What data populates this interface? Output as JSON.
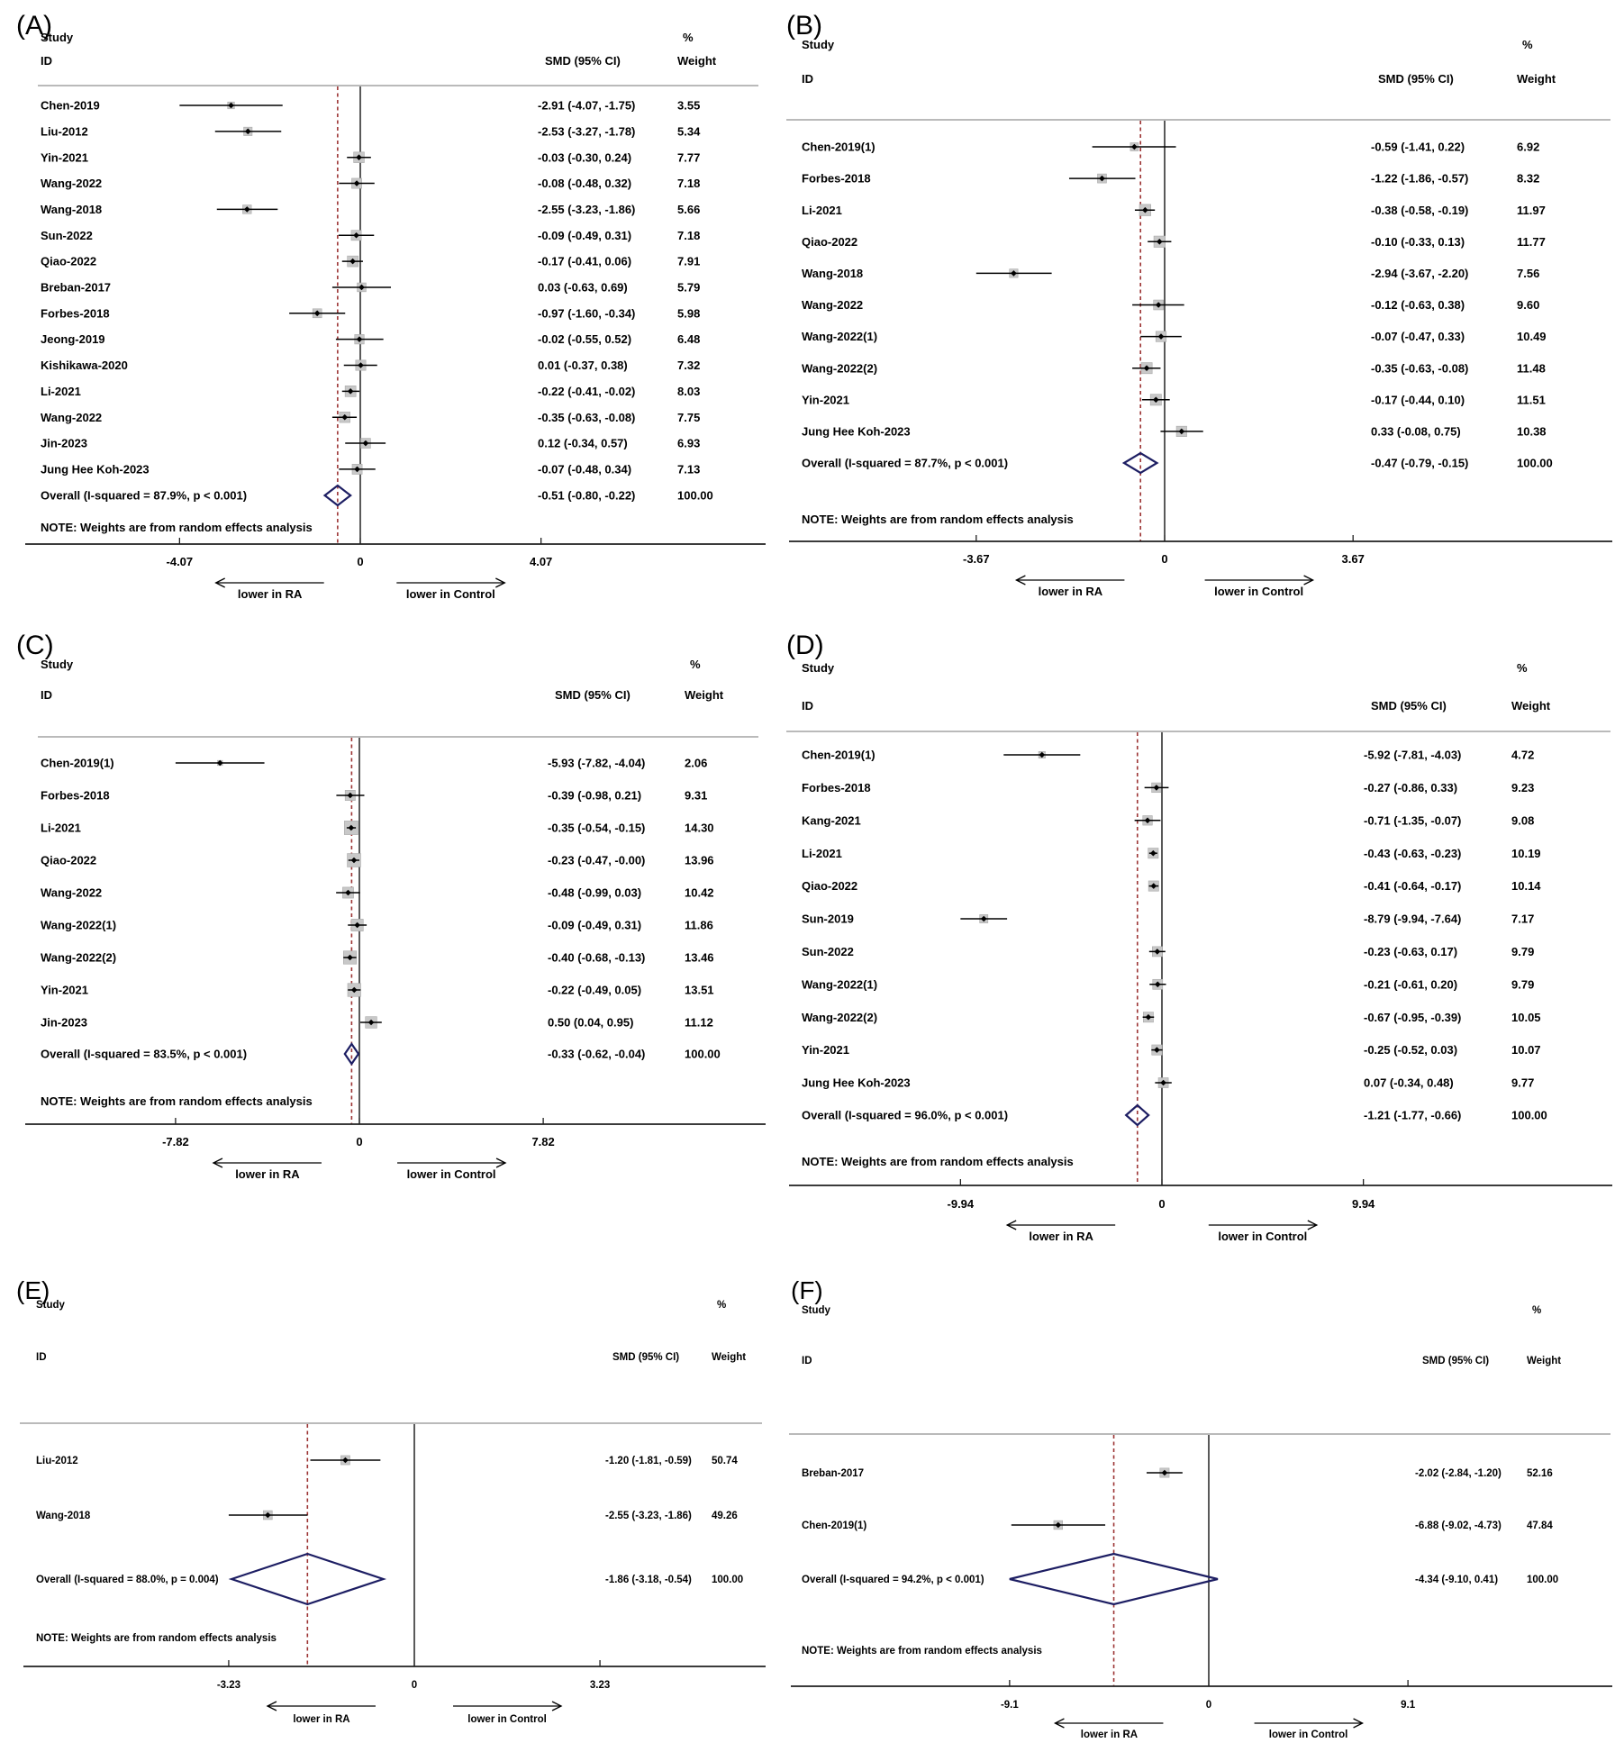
{
  "colors": {
    "dashed_line": "#9c3434",
    "diamond_outline": "#1d1e63",
    "weight_box_fill": "#c8c8c8",
    "weight_box_edge": "#a9a9a9",
    "header_rule": "#a3a3a3",
    "axis_line": "#1f1f1f",
    "text": "#000000"
  },
  "chart_data": [
    {
      "type": "forest",
      "panel_label": "(A)",
      "columns": {
        "study": "Study",
        "id": "ID",
        "smd": "SMD (95% CI)",
        "pct": "%",
        "weight": "Weight"
      },
      "studies": [
        {
          "id": "Chen-2019",
          "est": -2.91,
          "lo": -4.07,
          "hi": -1.75,
          "ci_text": "-2.91 (-4.07, -1.75)",
          "weight": "3.55"
        },
        {
          "id": "Liu-2012",
          "est": -2.53,
          "lo": -3.27,
          "hi": -1.78,
          "ci_text": "-2.53 (-3.27, -1.78)",
          "weight": "5.34"
        },
        {
          "id": "Yin-2021",
          "est": -0.03,
          "lo": -0.3,
          "hi": 0.24,
          "ci_text": "-0.03 (-0.30, 0.24)",
          "weight": "7.77"
        },
        {
          "id": "Wang-2022",
          "est": -0.08,
          "lo": -0.48,
          "hi": 0.32,
          "ci_text": "-0.08 (-0.48, 0.32)",
          "weight": "7.18"
        },
        {
          "id": "Wang-2018",
          "est": -2.55,
          "lo": -3.23,
          "hi": -1.86,
          "ci_text": "-2.55 (-3.23, -1.86)",
          "weight": "5.66"
        },
        {
          "id": "Sun-2022",
          "est": -0.09,
          "lo": -0.49,
          "hi": 0.31,
          "ci_text": "-0.09 (-0.49, 0.31)",
          "weight": "7.18"
        },
        {
          "id": "Qiao-2022",
          "est": -0.17,
          "lo": -0.41,
          "hi": 0.06,
          "ci_text": "-0.17 (-0.41, 0.06)",
          "weight": "7.91"
        },
        {
          "id": "Breban-2017",
          "est": 0.03,
          "lo": -0.63,
          "hi": 0.69,
          "ci_text": "0.03 (-0.63, 0.69)",
          "weight": "5.79"
        },
        {
          "id": "Forbes-2018",
          "est": -0.97,
          "lo": -1.6,
          "hi": -0.34,
          "ci_text": "-0.97 (-1.60, -0.34)",
          "weight": "5.98"
        },
        {
          "id": "Jeong-2019",
          "est": -0.02,
          "lo": -0.55,
          "hi": 0.52,
          "ci_text": "-0.02 (-0.55, 0.52)",
          "weight": "6.48"
        },
        {
          "id": "Kishikawa-2020",
          "est": 0.01,
          "lo": -0.37,
          "hi": 0.38,
          "ci_text": "0.01 (-0.37, 0.38)",
          "weight": "7.32"
        },
        {
          "id": "Li-2021",
          "est": -0.22,
          "lo": -0.41,
          "hi": -0.02,
          "ci_text": "-0.22 (-0.41, -0.02)",
          "weight": "8.03"
        },
        {
          "id": "Wang-2022",
          "est": -0.35,
          "lo": -0.63,
          "hi": -0.08,
          "ci_text": "-0.35 (-0.63, -0.08)",
          "weight": "7.75"
        },
        {
          "id": "Jin-2023",
          "est": 0.12,
          "lo": -0.34,
          "hi": 0.57,
          "ci_text": "0.12 (-0.34, 0.57)",
          "weight": "6.93"
        },
        {
          "id": "Jung Hee Koh-2023",
          "est": -0.07,
          "lo": -0.48,
          "hi": 0.34,
          "ci_text": "-0.07 (-0.48, 0.34)",
          "weight": "7.13"
        }
      ],
      "overall": {
        "label": "Overall  (I-squared = 87.9%, p < 0.001)",
        "est": -0.51,
        "lo": -0.8,
        "hi": -0.22,
        "ci_text": "-0.51 (-0.80, -0.22)",
        "weight": "100.00"
      },
      "note": "NOTE: Weights are from random effects analysis",
      "axis": {
        "ticks": [
          -4.07,
          0,
          4.07
        ],
        "tick_labels": [
          "-4.07",
          "0",
          "4.07"
        ],
        "left_arrow_label": "lower in RA",
        "right_arrow_label": "lower in Control"
      }
    },
    {
      "type": "forest",
      "panel_label": "(B)",
      "columns": {
        "study": "Study",
        "id": "ID",
        "smd": "SMD (95% CI)",
        "pct": "%",
        "weight": "Weight"
      },
      "studies": [
        {
          "id": "Chen-2019(1)",
          "est": -0.59,
          "lo": -1.41,
          "hi": 0.22,
          "ci_text": "-0.59 (-1.41, 0.22)",
          "weight": "6.92"
        },
        {
          "id": "Forbes-2018",
          "est": -1.22,
          "lo": -1.86,
          "hi": -0.57,
          "ci_text": "-1.22 (-1.86, -0.57)",
          "weight": "8.32"
        },
        {
          "id": "Li-2021",
          "est": -0.38,
          "lo": -0.58,
          "hi": -0.19,
          "ci_text": "-0.38 (-0.58, -0.19)",
          "weight": "11.97"
        },
        {
          "id": "Qiao-2022",
          "est": -0.1,
          "lo": -0.33,
          "hi": 0.13,
          "ci_text": "-0.10 (-0.33, 0.13)",
          "weight": "11.77"
        },
        {
          "id": "Wang-2018",
          "est": -2.94,
          "lo": -3.67,
          "hi": -2.2,
          "ci_text": "-2.94 (-3.67, -2.20)",
          "weight": "7.56"
        },
        {
          "id": "Wang-2022",
          "est": -0.12,
          "lo": -0.63,
          "hi": 0.38,
          "ci_text": "-0.12 (-0.63, 0.38)",
          "weight": "9.60"
        },
        {
          "id": "Wang-2022(1)",
          "est": -0.07,
          "lo": -0.47,
          "hi": 0.33,
          "ci_text": "-0.07 (-0.47, 0.33)",
          "weight": "10.49"
        },
        {
          "id": "Wang-2022(2)",
          "est": -0.35,
          "lo": -0.63,
          "hi": -0.08,
          "ci_text": "-0.35 (-0.63, -0.08)",
          "weight": "11.48"
        },
        {
          "id": "Yin-2021",
          "est": -0.17,
          "lo": -0.44,
          "hi": 0.1,
          "ci_text": "-0.17 (-0.44, 0.10)",
          "weight": "11.51"
        },
        {
          "id": "Jung Hee Koh-2023",
          "est": 0.33,
          "lo": -0.08,
          "hi": 0.75,
          "ci_text": "0.33 (-0.08, 0.75)",
          "weight": "10.38"
        }
      ],
      "overall": {
        "label": "Overall  (I-squared = 87.7%, p < 0.001)",
        "est": -0.47,
        "lo": -0.79,
        "hi": -0.15,
        "ci_text": "-0.47 (-0.79, -0.15)",
        "weight": "100.00"
      },
      "note": "NOTE: Weights are from random effects analysis",
      "axis": {
        "ticks": [
          -3.67,
          0,
          3.67
        ],
        "tick_labels": [
          "-3.67",
          "0",
          "3.67"
        ],
        "left_arrow_label": "lower in RA",
        "right_arrow_label": "lower in Control"
      }
    },
    {
      "type": "forest",
      "panel_label": "(C)",
      "columns": {
        "study": "Study",
        "id": "ID",
        "smd": "SMD (95% CI)",
        "pct": "%",
        "weight": "Weight"
      },
      "studies": [
        {
          "id": "Chen-2019(1)",
          "est": -5.93,
          "lo": -7.82,
          "hi": -4.04,
          "ci_text": "-5.93 (-7.82, -4.04)",
          "weight": "2.06"
        },
        {
          "id": "Forbes-2018",
          "est": -0.39,
          "lo": -0.98,
          "hi": 0.21,
          "ci_text": "-0.39 (-0.98, 0.21)",
          "weight": "9.31"
        },
        {
          "id": "Li-2021",
          "est": -0.35,
          "lo": -0.54,
          "hi": -0.15,
          "ci_text": "-0.35 (-0.54, -0.15)",
          "weight": "14.30"
        },
        {
          "id": "Qiao-2022",
          "est": -0.23,
          "lo": -0.47,
          "hi": 0.0,
          "ci_text": "-0.23 (-0.47, -0.00)",
          "weight": "13.96"
        },
        {
          "id": "Wang-2022",
          "est": -0.48,
          "lo": -0.99,
          "hi": 0.03,
          "ci_text": "-0.48 (-0.99, 0.03)",
          "weight": "10.42"
        },
        {
          "id": "Wang-2022(1)",
          "est": -0.09,
          "lo": -0.49,
          "hi": 0.31,
          "ci_text": "-0.09 (-0.49, 0.31)",
          "weight": "11.86"
        },
        {
          "id": "Wang-2022(2)",
          "est": -0.4,
          "lo": -0.68,
          "hi": -0.13,
          "ci_text": "-0.40 (-0.68, -0.13)",
          "weight": "13.46"
        },
        {
          "id": "Yin-2021",
          "est": -0.22,
          "lo": -0.49,
          "hi": 0.05,
          "ci_text": "-0.22 (-0.49, 0.05)",
          "weight": "13.51"
        },
        {
          "id": "Jin-2023",
          "est": 0.5,
          "lo": 0.04,
          "hi": 0.95,
          "ci_text": "0.50 (0.04, 0.95)",
          "weight": "11.12"
        }
      ],
      "overall": {
        "label": "Overall  (I-squared = 83.5%, p < 0.001)",
        "est": -0.33,
        "lo": -0.62,
        "hi": -0.04,
        "ci_text": "-0.33 (-0.62, -0.04)",
        "weight": "100.00"
      },
      "note": "NOTE: Weights are from random effects analysis",
      "axis": {
        "ticks": [
          -7.82,
          0,
          7.82
        ],
        "tick_labels": [
          "-7.82",
          "0",
          "7.82"
        ],
        "left_arrow_label": "lower in RA",
        "right_arrow_label": "lower in Control"
      }
    },
    {
      "type": "forest",
      "panel_label": "(D)",
      "columns": {
        "study": "Study",
        "id": "ID",
        "smd": "SMD (95% CI)",
        "pct": "%",
        "weight": "Weight"
      },
      "studies": [
        {
          "id": "Chen-2019(1)",
          "est": -5.92,
          "lo": -7.81,
          "hi": -4.03,
          "ci_text": "-5.92 (-7.81, -4.03)",
          "weight": "4.72"
        },
        {
          "id": "Forbes-2018",
          "est": -0.27,
          "lo": -0.86,
          "hi": 0.33,
          "ci_text": "-0.27 (-0.86, 0.33)",
          "weight": "9.23"
        },
        {
          "id": "Kang-2021",
          "est": -0.71,
          "lo": -1.35,
          "hi": -0.07,
          "ci_text": "-0.71 (-1.35, -0.07)",
          "weight": "9.08"
        },
        {
          "id": "Li-2021",
          "est": -0.43,
          "lo": -0.63,
          "hi": -0.23,
          "ci_text": "-0.43 (-0.63, -0.23)",
          "weight": "10.19"
        },
        {
          "id": "Qiao-2022",
          "est": -0.41,
          "lo": -0.64,
          "hi": -0.17,
          "ci_text": "-0.41 (-0.64, -0.17)",
          "weight": "10.14"
        },
        {
          "id": "Sun-2019",
          "est": -8.79,
          "lo": -9.94,
          "hi": -7.64,
          "ci_text": "-8.79 (-9.94, -7.64)",
          "weight": "7.17"
        },
        {
          "id": "Sun-2022",
          "est": -0.23,
          "lo": -0.63,
          "hi": 0.17,
          "ci_text": "-0.23 (-0.63, 0.17)",
          "weight": "9.79"
        },
        {
          "id": "Wang-2022(1)",
          "est": -0.21,
          "lo": -0.61,
          "hi": 0.2,
          "ci_text": "-0.21 (-0.61, 0.20)",
          "weight": "9.79"
        },
        {
          "id": "Wang-2022(2)",
          "est": -0.67,
          "lo": -0.95,
          "hi": -0.39,
          "ci_text": "-0.67 (-0.95, -0.39)",
          "weight": "10.05"
        },
        {
          "id": "Yin-2021",
          "est": -0.25,
          "lo": -0.52,
          "hi": 0.03,
          "ci_text": "-0.25 (-0.52, 0.03)",
          "weight": "10.07"
        },
        {
          "id": "Jung Hee Koh-2023",
          "est": 0.07,
          "lo": -0.34,
          "hi": 0.48,
          "ci_text": "0.07 (-0.34, 0.48)",
          "weight": "9.77"
        }
      ],
      "overall": {
        "label": "Overall  (I-squared = 96.0%, p < 0.001)",
        "est": -1.21,
        "lo": -1.77,
        "hi": -0.66,
        "ci_text": "-1.21 (-1.77, -0.66)",
        "weight": "100.00"
      },
      "note": "NOTE: Weights are from random effects analysis",
      "axis": {
        "ticks": [
          -9.94,
          0,
          9.94
        ],
        "tick_labels": [
          "-9.94",
          "0",
          "9.94"
        ],
        "left_arrow_label": "lower in RA",
        "right_arrow_label": "lower in Control"
      }
    },
    {
      "type": "forest",
      "panel_label": "(E)",
      "columns": {
        "study": "Study",
        "id": "ID",
        "smd": "SMD (95% CI)",
        "pct": "%",
        "weight": "Weight"
      },
      "studies": [
        {
          "id": "Liu-2012",
          "est": -1.2,
          "lo": -1.81,
          "hi": -0.59,
          "ci_text": "-1.20 (-1.81, -0.59)",
          "weight": "50.74"
        },
        {
          "id": "Wang-2018",
          "est": -2.55,
          "lo": -3.23,
          "hi": -1.86,
          "ci_text": "-2.55 (-3.23, -1.86)",
          "weight": "49.26"
        }
      ],
      "overall": {
        "label": "Overall  (I-squared = 88.0%, p = 0.004)",
        "est": -1.86,
        "lo": -3.18,
        "hi": -0.54,
        "ci_text": "-1.86 (-3.18, -0.54)",
        "weight": "100.00"
      },
      "note": "NOTE: Weights are from random effects analysis",
      "axis": {
        "ticks": [
          -3.23,
          0,
          3.23
        ],
        "tick_labels": [
          "-3.23",
          "0",
          "3.23"
        ],
        "left_arrow_label": "lower in RA",
        "right_arrow_label": "lower in Control"
      }
    },
    {
      "type": "forest",
      "panel_label": "(F)",
      "columns": {
        "study": "Study",
        "id": "ID",
        "smd": "SMD (95% CI)",
        "pct": "%",
        "weight": "Weight"
      },
      "studies": [
        {
          "id": "Breban-2017",
          "est": -2.02,
          "lo": -2.84,
          "hi": -1.2,
          "ci_text": "-2.02 (-2.84, -1.20)",
          "weight": "52.16"
        },
        {
          "id": "Chen-2019(1)",
          "est": -6.88,
          "lo": -9.02,
          "hi": -4.73,
          "ci_text": "-6.88 (-9.02, -4.73)",
          "weight": "47.84"
        }
      ],
      "overall": {
        "label": "Overall  (I-squared = 94.2%, p < 0.001)",
        "est": -4.34,
        "lo": -9.1,
        "hi": 0.41,
        "ci_text": "-4.34 (-9.10, 0.41)",
        "weight": "100.00"
      },
      "note": "NOTE: Weights are from random effects analysis",
      "axis": {
        "ticks": [
          -9.1,
          0,
          9.1
        ],
        "tick_labels": [
          "-9.1",
          "0",
          "9.1"
        ],
        "left_arrow_label": "lower in RA",
        "right_arrow_label": "lower in Control"
      }
    }
  ]
}
